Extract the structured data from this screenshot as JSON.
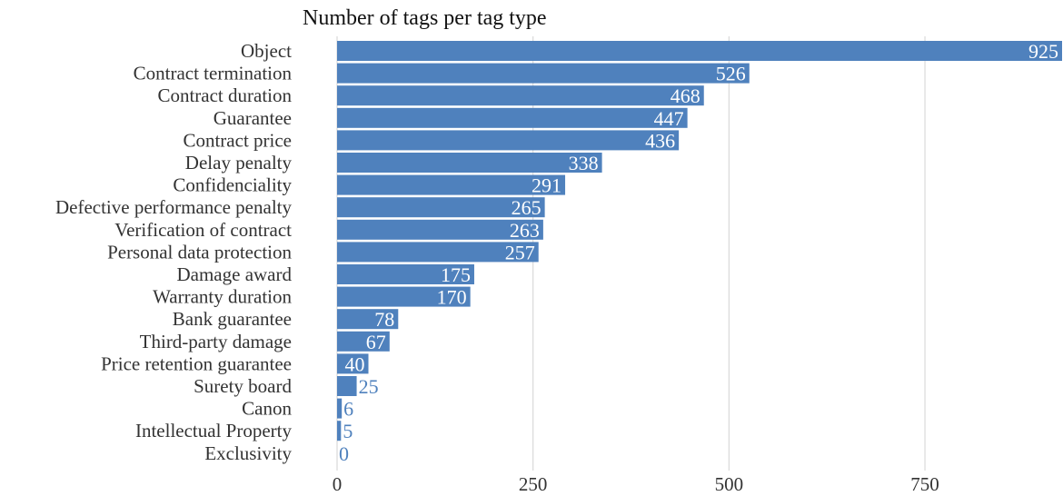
{
  "chart_data": {
    "type": "bar",
    "orientation": "horizontal",
    "title": "Number of tags per tag type",
    "xlabel": "",
    "ylabel": "",
    "categories": [
      "Object",
      "Contract termination",
      "Contract duration",
      "Guarantee",
      "Contract price",
      "Delay penalty",
      "Confidenciality",
      "Defective performance penalty",
      "Verification of contract",
      "Personal data protection",
      "Damage award",
      "Warranty duration",
      "Bank guarantee",
      "Third-party damage",
      "Price retention guarantee",
      "Surety board",
      "Canon",
      "Intellectual Property",
      "Exclusivity"
    ],
    "values": [
      925,
      526,
      468,
      447,
      436,
      338,
      291,
      265,
      263,
      257,
      175,
      170,
      78,
      67,
      40,
      25,
      6,
      5,
      0
    ],
    "value_labels": [
      "925",
      "526",
      "468",
      "447",
      "436",
      "338",
      "291",
      "265",
      "263",
      "257",
      "175",
      "170",
      "78",
      "67",
      "40",
      "25",
      "6",
      "5",
      "0"
    ],
    "xlim": [
      0,
      925
    ],
    "xticks": [
      0,
      250,
      500,
      750
    ],
    "xtick_labels": [
      "0",
      "250",
      "500",
      "750"
    ],
    "grid": true,
    "legend": "none",
    "colors": {
      "bar": "#4f81bd",
      "label_inside": "#ffffff",
      "label_outside": "#4f81bd",
      "grid": "#d9d9d9",
      "text": "#333333"
    }
  }
}
